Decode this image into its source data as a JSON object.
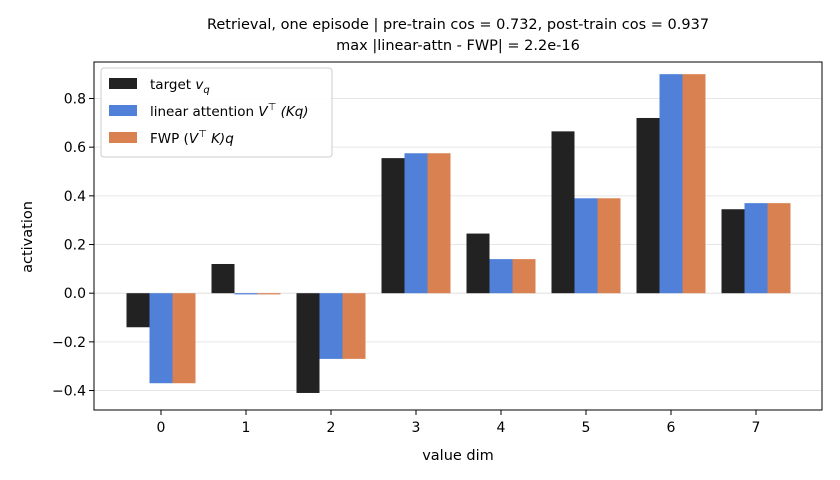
{
  "chart_data": {
    "type": "bar",
    "title_line1": "Retrieval, one episode  |  pre-train cos = 0.732,  post-train cos = 0.937",
    "title_line2": "max |linear-attn - FWP| = 2.2e-16",
    "xlabel": "value dim",
    "ylabel": "activation",
    "categories": [
      "0",
      "1",
      "2",
      "3",
      "4",
      "5",
      "6",
      "7"
    ],
    "ylim": [
      -0.48,
      0.95
    ],
    "yticks": [
      -0.4,
      -0.2,
      0.0,
      0.2,
      0.4,
      0.6,
      0.8
    ],
    "ytick_labels": [
      "−0.4",
      "−0.2",
      "0.0",
      "0.2",
      "0.4",
      "0.6",
      "0.8"
    ],
    "grid": "y",
    "legend_position": "top-left",
    "series": [
      {
        "name": "target v_q",
        "legend_text": "target ",
        "legend_var": "v",
        "legend_sub": "q",
        "color": "#222222",
        "values": [
          -0.14,
          0.12,
          -0.41,
          0.555,
          0.245,
          0.665,
          0.72,
          0.345
        ]
      },
      {
        "name": "linear attention V⊤(Kq)",
        "legend_text": "linear attention ",
        "legend_var": "V",
        "legend_sup": "⊤",
        "legend_rest": "(Kq)",
        "color": "#5080d8",
        "values": [
          -0.37,
          -0.005,
          -0.27,
          0.575,
          0.14,
          0.39,
          0.9,
          0.37
        ]
      },
      {
        "name": "FWP (V⊤K)q",
        "legend_text": "FWP (",
        "legend_var": "V",
        "legend_sup": "⊤",
        "legend_rest": "K)q",
        "color": "#d98150",
        "values": [
          -0.37,
          -0.005,
          -0.27,
          0.575,
          0.14,
          0.39,
          0.9,
          0.37
        ]
      }
    ]
  }
}
